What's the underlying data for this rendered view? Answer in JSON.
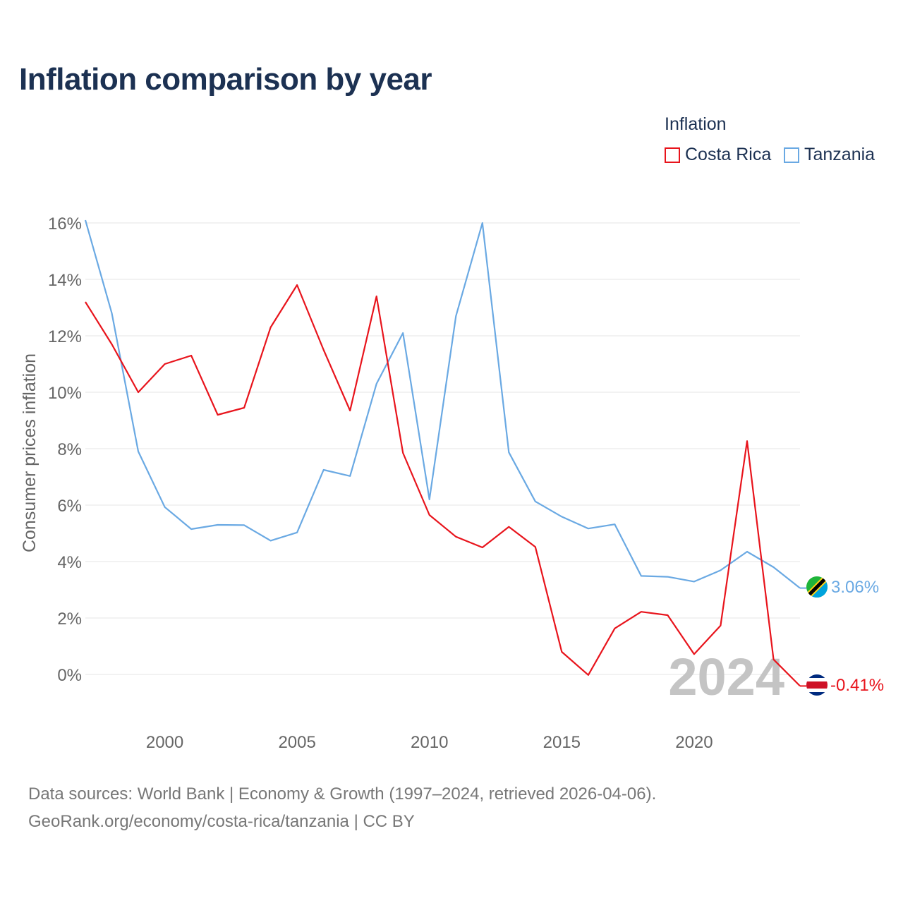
{
  "title": "Inflation comparison by year",
  "legend": {
    "title": "Inflation",
    "items": [
      {
        "label": "Costa Rica",
        "color": "#e8141c"
      },
      {
        "label": "Tanzania",
        "color": "#6aa9e3"
      }
    ]
  },
  "year_watermark": "2024",
  "footer": {
    "line1": "Data sources: World Bank | Economy & Growth (1997–2024, retrieved 2026-04-06).",
    "line2": "GeoRank.org/economy/costa-rica/tanzania | CC BY"
  },
  "chart_data": {
    "type": "line",
    "title": "Inflation comparison by year",
    "xlabel": "",
    "ylabel": "Consumer prices inflation",
    "xlim": [
      1997,
      2024
    ],
    "ylim": [
      -1.5,
      16.5
    ],
    "y_ticks": [
      0,
      2,
      4,
      6,
      8,
      10,
      12,
      14,
      16
    ],
    "y_tick_labels": [
      "0%",
      "2%",
      "4%",
      "6%",
      "8%",
      "10%",
      "12%",
      "14%",
      "16%"
    ],
    "x_ticks": [
      2000,
      2005,
      2010,
      2015,
      2020
    ],
    "x_tick_labels": [
      "2000",
      "2005",
      "2010",
      "2015",
      "2020"
    ],
    "grid": true,
    "legend_position": "top-right",
    "x": [
      1997,
      1998,
      1999,
      2000,
      2001,
      2002,
      2003,
      2004,
      2005,
      2006,
      2007,
      2008,
      2009,
      2010,
      2011,
      2012,
      2013,
      2014,
      2015,
      2016,
      2017,
      2018,
      2019,
      2020,
      2021,
      2022,
      2023,
      2024
    ],
    "series": [
      {
        "name": "Costa Rica",
        "color": "#e8141c",
        "values": [
          13.2,
          11.7,
          10.0,
          11.0,
          11.3,
          9.2,
          9.45,
          12.3,
          13.8,
          11.5,
          9.35,
          13.4,
          7.85,
          5.65,
          4.88,
          4.5,
          5.23,
          4.52,
          0.8,
          -0.02,
          1.63,
          2.22,
          2.1,
          0.72,
          1.73,
          8.27,
          0.53,
          -0.41
        ],
        "end_label": "-0.41%"
      },
      {
        "name": "Tanzania",
        "color": "#6aa9e3",
        "values": [
          16.1,
          12.8,
          7.9,
          5.93,
          5.15,
          5.3,
          5.29,
          4.74,
          5.03,
          7.25,
          7.03,
          10.3,
          12.1,
          6.2,
          12.7,
          16.0,
          7.87,
          6.13,
          5.59,
          5.17,
          5.32,
          3.49,
          3.46,
          3.29,
          3.69,
          4.35,
          3.8,
          3.06
        ],
        "end_label": "3.06%"
      }
    ]
  }
}
